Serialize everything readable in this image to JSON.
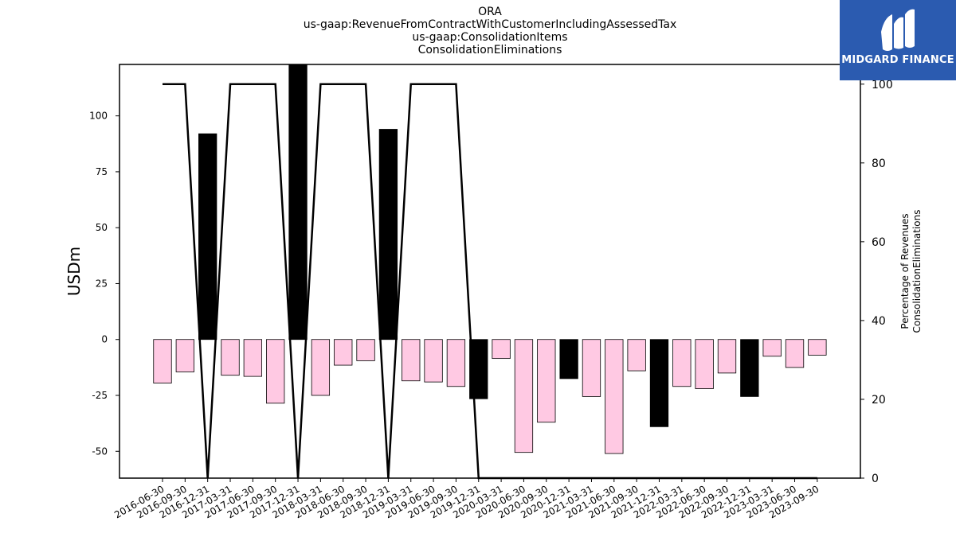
{
  "title_lines": [
    "ORA",
    "us-gaap:RevenueFromContractWithCustomerIncludingAssessedTax",
    "us-gaap:ConsolidationItems",
    "ConsolidationEliminations"
  ],
  "logo": {
    "text": "MIDGARD FINANCE",
    "bg_color": "#2b5bb0"
  },
  "chart_data": {
    "type": "bar",
    "categories": [
      "2016-06-30",
      "2016-09-30",
      "2016-12-31",
      "2017-03-31",
      "2017-06-30",
      "2017-09-30",
      "2017-12-31",
      "2018-03-31",
      "2018-06-30",
      "2018-09-30",
      "2018-12-31",
      "2019-03-31",
      "2019-06-30",
      "2019-09-30",
      "2019-12-31",
      "2020-03-31",
      "2020-06-30",
      "2020-09-30",
      "2020-12-31",
      "2021-03-31",
      "2021-06-30",
      "2021-09-30",
      "2021-12-31",
      "2022-03-31",
      "2022-06-30",
      "2022-09-30",
      "2022-12-31",
      "2023-03-31",
      "2023-06-30",
      "2023-09-30"
    ],
    "values": [
      -19.5,
      -14.5,
      92,
      -16,
      -16.5,
      -28.5,
      124,
      -25,
      -11.5,
      -9.5,
      94,
      -18.5,
      -19,
      -21,
      -26.5,
      -8.5,
      -50.5,
      -37,
      -17.5,
      -25.5,
      -51,
      -14,
      -39,
      -21,
      -22,
      -15,
      -25.5,
      -7.5,
      -12.5,
      -7
    ],
    "bar_colors": [
      "#ffc9e3",
      "#ffc9e3",
      "#000000",
      "#ffc9e3",
      "#ffc9e3",
      "#ffc9e3",
      "#000000",
      "#ffc9e3",
      "#ffc9e3",
      "#ffc9e3",
      "#000000",
      "#ffc9e3",
      "#ffc9e3",
      "#ffc9e3",
      "#000000",
      "#ffc9e3",
      "#ffc9e3",
      "#ffc9e3",
      "#000000",
      "#ffc9e3",
      "#ffc9e3",
      "#ffc9e3",
      "#000000",
      "#ffc9e3",
      "#ffc9e3",
      "#ffc9e3",
      "#000000",
      "#ffc9e3",
      "#ffc9e3",
      "#ffc9e3"
    ],
    "line_series": {
      "axis": "right",
      "values": [
        100,
        100,
        0,
        100,
        100,
        100,
        0,
        100,
        100,
        100,
        0,
        100,
        100,
        100,
        0,
        0,
        0,
        0,
        0,
        0,
        0,
        0,
        0,
        0,
        0,
        0,
        0,
        0,
        0,
        0
      ]
    },
    "ylabel": "USDm",
    "ylabel_right": [
      "Percentage of Revenues",
      "ConsolidationEliminations"
    ],
    "ylim": [
      -62,
      123
    ],
    "ylim_right": [
      0,
      105
    ],
    "yticks": [
      -50,
      -25,
      0,
      25,
      50,
      75,
      100
    ],
    "yticks_right": [
      0,
      20,
      40,
      60,
      80,
      100
    ],
    "grid": false
  }
}
